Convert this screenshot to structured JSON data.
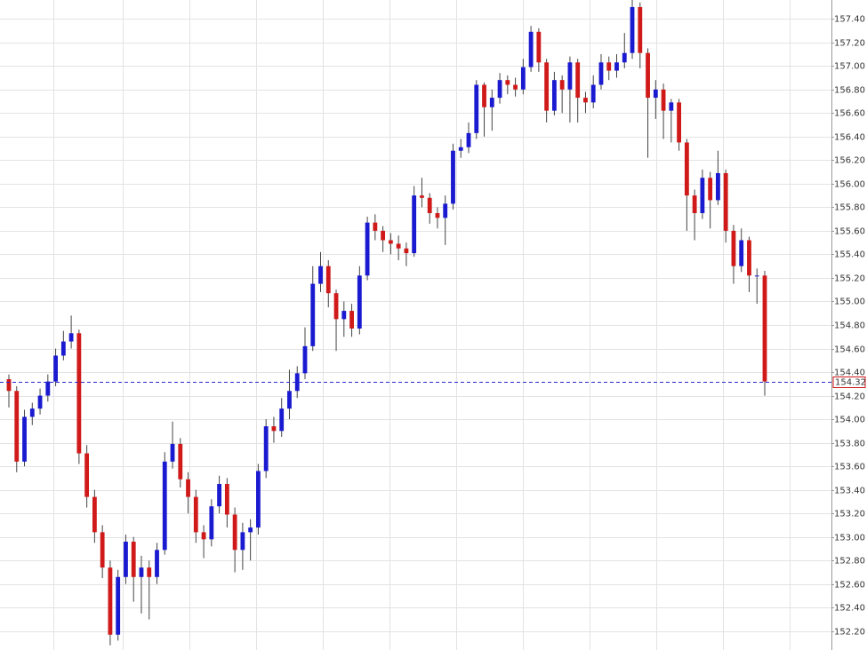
{
  "chart_data": {
    "type": "candlestick",
    "ylim": [
      152.04,
      157.56
    ],
    "yticks": [
      {
        "value": 152.2,
        "label": "152.20"
      },
      {
        "value": 152.4,
        "label": "152.40"
      },
      {
        "value": 152.6,
        "label": "152.60"
      },
      {
        "value": 152.8,
        "label": "152.80"
      },
      {
        "value": 153.0,
        "label": "153.00"
      },
      {
        "value": 153.2,
        "label": "153.20"
      },
      {
        "value": 153.4,
        "label": "153.40"
      },
      {
        "value": 153.6,
        "label": "153.60"
      },
      {
        "value": 153.8,
        "label": "153.80"
      },
      {
        "value": 154.0,
        "label": "154.00"
      },
      {
        "value": 154.2,
        "label": "154.20"
      },
      {
        "value": 154.4,
        "label": "154.40"
      },
      {
        "value": 154.6,
        "label": "154.60"
      },
      {
        "value": 154.8,
        "label": "154.80"
      },
      {
        "value": 155.0,
        "label": "155.00"
      },
      {
        "value": 155.2,
        "label": "155.20"
      },
      {
        "value": 155.4,
        "label": "155.40"
      },
      {
        "value": 155.6,
        "label": "155.60"
      },
      {
        "value": 155.8,
        "label": "155.80"
      },
      {
        "value": 156.0,
        "label": "156.00"
      },
      {
        "value": 156.2,
        "label": "156.20"
      },
      {
        "value": 156.4,
        "label": "156.40"
      },
      {
        "value": 156.6,
        "label": "156.60"
      },
      {
        "value": 156.8,
        "label": "156.80"
      },
      {
        "value": 157.0,
        "label": "157.00"
      },
      {
        "value": 157.2,
        "label": "157.20"
      },
      {
        "value": 157.4,
        "label": "157.40"
      }
    ],
    "grid": true,
    "up_color": "#1a1ad0",
    "down_color": "#d01a1a",
    "last_price": {
      "value": 154.32,
      "label": "154.32"
    },
    "open": [
      154.34,
      154.24,
      153.64,
      154.02,
      154.09,
      154.2,
      154.32,
      154.54,
      154.66,
      154.73,
      153.71,
      153.34,
      153.04,
      152.74,
      152.17,
      152.66,
      152.96,
      152.66,
      152.74,
      152.66,
      152.89,
      153.64,
      153.79,
      153.49,
      153.34,
      153.04,
      152.98,
      153.26,
      153.45,
      153.19,
      152.89,
      153.04,
      153.08,
      153.56,
      153.94,
      153.9,
      154.09,
      154.24,
      154.39,
      154.62,
      155.15,
      155.3,
      155.07,
      154.85,
      154.92,
      154.77,
      155.22,
      155.67,
      155.6,
      155.52,
      155.49,
      155.45,
      155.41,
      155.9,
      155.88,
      155.75,
      155.71,
      155.83,
      156.28,
      156.31,
      156.43,
      156.84,
      156.65,
      156.73,
      156.88,
      156.84,
      156.8,
      156.99,
      157.29,
      157.03,
      156.62,
      156.88,
      156.8,
      157.03,
      156.73,
      156.69,
      156.84,
      157.03,
      156.96,
      157.03,
      157.11,
      157.5,
      157.11,
      156.73,
      156.8,
      156.62,
      156.69,
      156.35,
      155.9,
      155.75,
      156.05,
      155.86,
      156.09,
      155.6,
      155.3,
      155.52,
      155.22,
      155.22
    ],
    "high": [
      154.38,
      154.28,
      154.08,
      154.14,
      154.26,
      154.38,
      154.6,
      154.75,
      154.88,
      154.76,
      153.78,
      153.4,
      153.1,
      152.8,
      152.72,
      153.02,
      153.0,
      152.84,
      152.8,
      152.95,
      153.72,
      153.98,
      153.84,
      153.55,
      153.4,
      153.1,
      153.32,
      153.52,
      153.5,
      153.25,
      153.12,
      153.15,
      153.62,
      154.0,
      154.02,
      154.18,
      154.42,
      154.45,
      154.78,
      155.3,
      155.42,
      155.35,
      155.1,
      155.0,
      154.98,
      155.3,
      155.72,
      155.74,
      155.64,
      155.58,
      155.56,
      155.5,
      155.98,
      156.05,
      155.92,
      155.8,
      155.9,
      156.34,
      156.38,
      156.52,
      156.88,
      156.86,
      156.8,
      156.94,
      156.92,
      156.9,
      157.06,
      157.34,
      157.32,
      157.06,
      156.95,
      156.92,
      157.08,
      157.06,
      156.78,
      156.92,
      157.1,
      157.08,
      157.1,
      157.28,
      157.56,
      157.54,
      157.15,
      156.88,
      156.85,
      156.72,
      156.72,
      156.38,
      155.95,
      156.12,
      156.1,
      156.28,
      156.12,
      155.65,
      155.62,
      155.55,
      155.28,
      155.26
    ],
    "low": [
      154.1,
      153.55,
      153.6,
      153.95,
      154.04,
      154.15,
      154.28,
      154.5,
      154.6,
      153.62,
      153.25,
      152.95,
      152.65,
      152.08,
      152.12,
      152.6,
      152.45,
      152.35,
      152.3,
      152.6,
      152.85,
      153.58,
      153.42,
      153.2,
      152.95,
      152.82,
      152.92,
      153.2,
      153.08,
      152.7,
      152.72,
      152.8,
      153.02,
      153.5,
      153.8,
      153.85,
      154.0,
      154.18,
      154.34,
      154.58,
      155.08,
      154.95,
      154.58,
      154.7,
      154.7,
      154.72,
      155.18,
      155.52,
      155.42,
      155.4,
      155.35,
      155.3,
      155.38,
      155.8,
      155.66,
      155.62,
      155.48,
      155.78,
      156.22,
      156.26,
      156.38,
      156.4,
      156.45,
      156.68,
      156.76,
      156.74,
      156.76,
      156.95,
      156.95,
      156.52,
      156.58,
      156.6,
      156.52,
      156.52,
      156.6,
      156.64,
      156.8,
      156.88,
      156.9,
      156.98,
      157.06,
      156.98,
      156.22,
      156.55,
      156.38,
      156.35,
      156.28,
      155.6,
      155.52,
      155.7,
      155.62,
      155.82,
      155.5,
      155.15,
      155.25,
      155.08,
      154.98,
      154.2
    ],
    "close": [
      154.24,
      153.64,
      154.02,
      154.09,
      154.2,
      154.32,
      154.54,
      154.66,
      154.73,
      153.71,
      153.34,
      153.04,
      152.74,
      152.17,
      152.66,
      152.96,
      152.66,
      152.74,
      152.66,
      152.89,
      153.64,
      153.79,
      153.49,
      153.34,
      153.04,
      152.98,
      153.26,
      153.45,
      153.19,
      152.89,
      153.04,
      153.08,
      153.56,
      153.94,
      153.9,
      154.09,
      154.24,
      154.39,
      154.62,
      155.15,
      155.3,
      155.07,
      154.85,
      154.92,
      154.77,
      155.22,
      155.67,
      155.6,
      155.52,
      155.49,
      155.45,
      155.41,
      155.9,
      155.88,
      155.75,
      155.71,
      155.83,
      156.28,
      156.31,
      156.43,
      156.84,
      156.65,
      156.73,
      156.88,
      156.84,
      156.8,
      156.99,
      157.29,
      157.03,
      156.62,
      156.88,
      156.8,
      157.03,
      156.73,
      156.69,
      156.84,
      157.03,
      156.96,
      157.03,
      157.11,
      157.5,
      157.11,
      156.73,
      156.8,
      156.62,
      156.69,
      156.35,
      155.9,
      155.75,
      156.05,
      155.86,
      156.09,
      155.6,
      155.3,
      155.52,
      155.22,
      155.22,
      154.32
    ]
  }
}
